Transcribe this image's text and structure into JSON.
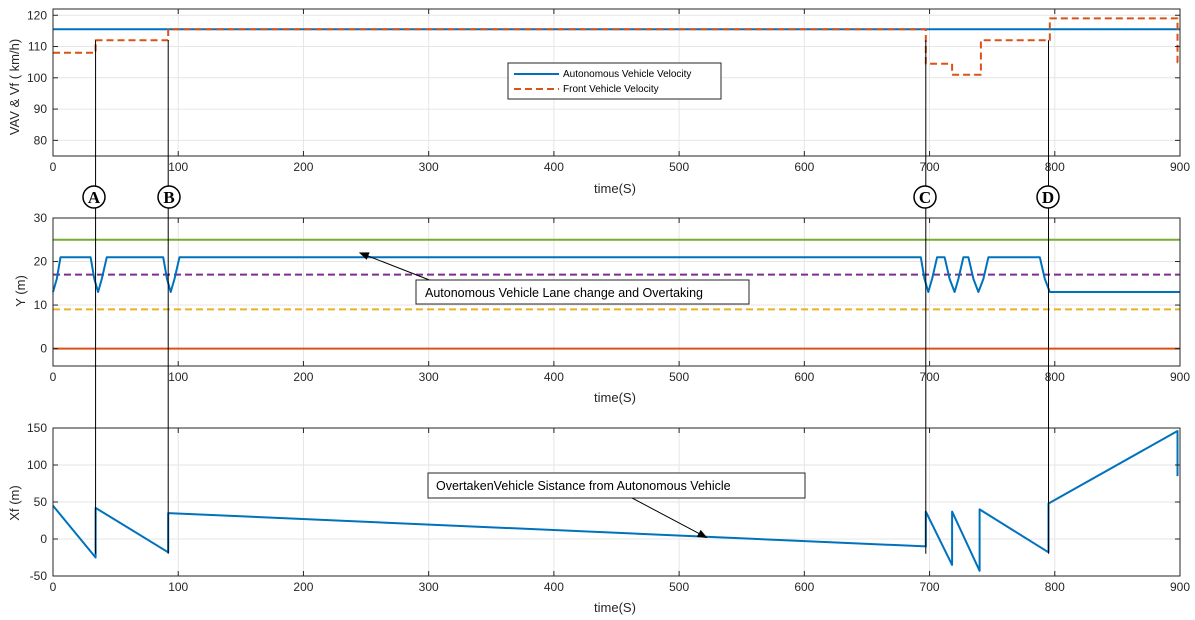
{
  "colors": {
    "blue": "#0072BD",
    "orange": "#D95319",
    "yellow": "#EDB120",
    "purple": "#7E2F8E",
    "green": "#77AC30",
    "grid": "#e6e6e6",
    "axis": "#262626"
  },
  "chart_data": [
    {
      "type": "line",
      "xlabel": "time(S)",
      "ylabel": "VAV & Vf ( km/h)",
      "xlim": [
        0,
        900
      ],
      "ylim": [
        75,
        122
      ],
      "xticks": [
        0,
        100,
        200,
        300,
        400,
        500,
        600,
        700,
        800,
        900
      ],
      "yticks": [
        80,
        90,
        100,
        110,
        120
      ],
      "grid": true,
      "legend_position": "center",
      "series": [
        {
          "name": "Autonomous Vehicle Velocity",
          "color": "#0072BD",
          "dash": "solid",
          "x": [
            0,
            900
          ],
          "y": [
            115.5,
            115.5
          ]
        },
        {
          "name": "Front Vehicle Velocity",
          "color": "#D95319",
          "dash": "dashed",
          "x": [
            0,
            34,
            34,
            92,
            92,
            697,
            697,
            718,
            718,
            741,
            741,
            796,
            796,
            898,
            898,
            900
          ],
          "y": [
            108,
            108,
            112,
            112,
            115.5,
            115.5,
            104.5,
            104.5,
            101,
            101,
            112,
            112,
            119,
            119,
            105,
            105
          ]
        }
      ]
    },
    {
      "type": "line",
      "xlabel": "time(S)",
      "ylabel": "Y (m)",
      "xlim": [
        0,
        900
      ],
      "ylim": [
        -4,
        30
      ],
      "xticks": [
        0,
        100,
        200,
        300,
        400,
        500,
        600,
        700,
        800,
        900
      ],
      "yticks": [
        0,
        10,
        20,
        30
      ],
      "grid": true,
      "annotations": [
        {
          "text": "Autonomous Vehicle Lane change and Overtaking",
          "arrow_to": [
            245,
            22
          ]
        }
      ],
      "series": [
        {
          "color": "#77AC30",
          "dash": "solid",
          "x": [
            0,
            900
          ],
          "y": [
            25,
            25
          ]
        },
        {
          "color": "#7E2F8E",
          "dash": "dashed",
          "x": [
            0,
            900
          ],
          "y": [
            17,
            17
          ]
        },
        {
          "color": "#EDB120",
          "dash": "dashed",
          "x": [
            0,
            900
          ],
          "y": [
            9,
            9
          ]
        },
        {
          "color": "#D95319",
          "dash": "solid",
          "x": [
            0,
            900
          ],
          "y": [
            0,
            0
          ]
        },
        {
          "color": "#0072BD",
          "dash": "solid",
          "x": [
            0,
            3,
            6,
            10,
            30,
            33,
            36,
            39,
            43,
            88,
            91,
            94,
            97,
            101,
            693,
            696,
            699,
            702,
            706,
            712,
            716,
            720,
            723,
            727,
            731,
            735,
            739,
            743,
            747,
            788,
            792,
            796,
            900
          ],
          "y": [
            13,
            16,
            21,
            21,
            21,
            16,
            13,
            16,
            21,
            21,
            16,
            13,
            16,
            21,
            21,
            16,
            13,
            16,
            21,
            21,
            16,
            13,
            16,
            21,
            21,
            16,
            13,
            16,
            21,
            21,
            16,
            13,
            13
          ]
        }
      ]
    },
    {
      "type": "line",
      "xlabel": "time(S)",
      "ylabel": "Xf (m)",
      "xlim": [
        0,
        900
      ],
      "ylim": [
        -50,
        150
      ],
      "xticks": [
        0,
        100,
        200,
        300,
        400,
        500,
        600,
        700,
        800,
        900
      ],
      "yticks": [
        -50,
        0,
        50,
        100,
        150
      ],
      "grid": true,
      "annotations": [
        {
          "text": "OvertakenVehicle Sistance from Autonomous Vehicle",
          "arrow_to": [
            522,
            2
          ]
        }
      ],
      "series": [
        {
          "color": "#0072BD",
          "dash": "solid",
          "x": [
            0,
            34,
            34,
            92,
            92,
            697,
            697,
            718,
            718,
            740,
            740,
            795,
            795,
            898,
            898
          ],
          "y": [
            45,
            -25,
            42,
            -18,
            35,
            -10,
            37,
            -35,
            37,
            -43,
            40,
            -18,
            48,
            146,
            85
          ]
        }
      ]
    }
  ],
  "markers": [
    {
      "label": "A",
      "t": 34
    },
    {
      "label": "B",
      "t": 92
    },
    {
      "label": "C",
      "t": 697
    },
    {
      "label": "D",
      "t": 795
    }
  ]
}
